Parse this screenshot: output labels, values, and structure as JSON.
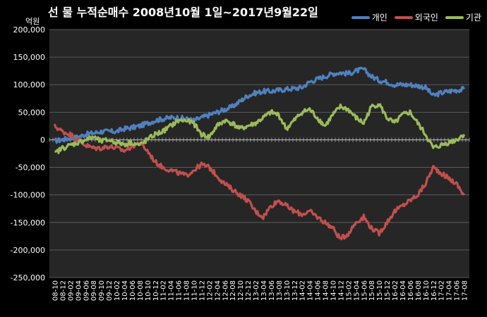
{
  "colors": {
    "background": "#000000",
    "plot_area": "#262626",
    "grid": "#5a5a5a"
  },
  "chart_data": {
    "type": "line",
    "title": "선 물 누적순매수 2008년10월 1일~2017년9월22일",
    "ylabel": "억원",
    "xlabel": "",
    "ylim": [
      -250000,
      200000
    ],
    "yticks": [
      "200,000",
      "150,000",
      "100,000",
      "50,000",
      "0",
      "-50,000",
      "-100,000",
      "-150,000",
      "-200,000",
      "-250,000"
    ],
    "grid": true,
    "legend_position": "top-right",
    "x": [
      "08-10",
      "08-12",
      "09-02",
      "09-04",
      "09-06",
      "09-08",
      "09-10",
      "09-12",
      "10-02",
      "10-04",
      "10-06",
      "10-08",
      "10-10",
      "10-12",
      "11-02",
      "11-04",
      "11-06",
      "11-08",
      "11-10",
      "11-12",
      "12-02",
      "12-04",
      "12-06",
      "12-08",
      "12-10",
      "12-12",
      "13-02",
      "13-04",
      "13-06",
      "13-08",
      "13-10",
      "13-12",
      "14-02",
      "14-04",
      "14-06",
      "14-08",
      "14-10",
      "14-12",
      "15-02",
      "15-04",
      "15-06",
      "15-08",
      "15-10",
      "15-12",
      "16-02",
      "16-04",
      "16-06",
      "16-08",
      "16-10",
      "16-12",
      "17-02",
      "17-04",
      "17-06",
      "17-08"
    ],
    "series": [
      {
        "name": "개인",
        "color": "#4f81bd",
        "values": [
          -2000,
          0,
          3000,
          5000,
          10000,
          12000,
          15000,
          15000,
          15000,
          20000,
          22000,
          25000,
          30000,
          35000,
          38000,
          40000,
          40000,
          38000,
          35000,
          40000,
          45000,
          50000,
          55000,
          60000,
          70000,
          80000,
          85000,
          88000,
          88000,
          90000,
          92000,
          93000,
          95000,
          105000,
          110000,
          115000,
          120000,
          122000,
          120000,
          125000,
          128000,
          115000,
          108000,
          105000,
          100000,
          100000,
          100000,
          98000,
          95000,
          80000,
          85000,
          88000,
          90000,
          92000
        ]
      },
      {
        "name": "외국인",
        "color": "#c0504d",
        "values": [
          25000,
          15000,
          10000,
          0,
          -10000,
          -15000,
          -15000,
          -12000,
          -15000,
          -20000,
          -12000,
          -5000,
          -20000,
          -40000,
          -50000,
          -55000,
          -60000,
          -65000,
          -55000,
          -45000,
          -50000,
          -65000,
          -80000,
          -90000,
          -100000,
          -110000,
          -130000,
          -140000,
          -120000,
          -110000,
          -120000,
          -130000,
          -135000,
          -130000,
          -140000,
          -150000,
          -160000,
          -180000,
          -170000,
          -150000,
          -140000,
          -160000,
          -170000,
          -150000,
          -130000,
          -120000,
          -110000,
          -100000,
          -80000,
          -50000,
          -60000,
          -70000,
          -80000,
          -100000
        ]
      },
      {
        "name": "기관",
        "color": "#9bbb59",
        "values": [
          -25000,
          -15000,
          -10000,
          -5000,
          0,
          5000,
          -3000,
          0,
          -5000,
          -8000,
          -5000,
          -10000,
          0,
          10000,
          15000,
          25000,
          35000,
          35000,
          30000,
          10000,
          5000,
          25000,
          35000,
          30000,
          20000,
          25000,
          30000,
          40000,
          50000,
          45000,
          20000,
          35000,
          50000,
          55000,
          40000,
          25000,
          45000,
          60000,
          55000,
          40000,
          30000,
          60000,
          65000,
          40000,
          30000,
          45000,
          50000,
          30000,
          10000,
          -15000,
          -10000,
          -5000,
          0,
          10000
        ]
      }
    ]
  }
}
